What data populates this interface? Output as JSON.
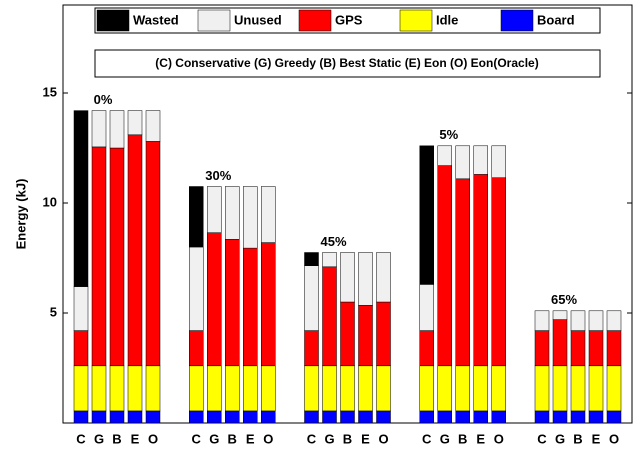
{
  "chart_data": {
    "type": "stacked-bar",
    "ylabel": "Energy (kJ)",
    "ylim": [
      0,
      19
    ],
    "yticks": [
      5,
      10,
      15
    ],
    "group_labels": [
      "0%",
      "30%",
      "45%",
      "5%",
      "65%"
    ],
    "categories": [
      "C",
      "G",
      "B",
      "E",
      "O",
      "C",
      "G",
      "B",
      "E",
      "O",
      "C",
      "G",
      "B",
      "E",
      "O",
      "C",
      "G",
      "B",
      "E",
      "O",
      "C",
      "G",
      "B",
      "E",
      "O"
    ],
    "annotation": "(C) Conservative (G) Greedy (B) Best Static (E) Eon (O) Eon(Oracle)",
    "series": [
      {
        "name": "Board",
        "color": "#0000ff",
        "values": [
          0.55,
          0.55,
          0.55,
          0.55,
          0.55,
          0.55,
          0.55,
          0.55,
          0.55,
          0.55,
          0.55,
          0.55,
          0.55,
          0.55,
          0.55,
          0.55,
          0.55,
          0.55,
          0.55,
          0.55,
          0.55,
          0.55,
          0.55,
          0.55,
          0.55
        ]
      },
      {
        "name": "Idle",
        "color": "#ffff00",
        "values": [
          2.05,
          2.05,
          2.05,
          2.05,
          2.05,
          2.05,
          2.05,
          2.05,
          2.05,
          2.05,
          2.05,
          2.05,
          2.05,
          2.05,
          2.05,
          2.05,
          2.05,
          2.05,
          2.05,
          2.05,
          2.05,
          2.05,
          2.05,
          2.05,
          2.05
        ]
      },
      {
        "name": "GPS",
        "color": "#ff0000",
        "values": [
          1.6,
          9.95,
          9.9,
          10.5,
          10.2,
          1.6,
          6.05,
          5.75,
          5.35,
          5.6,
          1.6,
          4.5,
          2.9,
          2.75,
          2.9,
          1.6,
          9.1,
          8.5,
          8.7,
          8.55,
          1.6,
          2.1,
          1.6,
          1.6,
          1.6
        ]
      },
      {
        "name": "Unused",
        "color": "#f0f0f0",
        "values": [
          2.0,
          1.65,
          1.7,
          1.1,
          1.4,
          3.8,
          2.1,
          2.4,
          2.8,
          2.55,
          2.95,
          0.65,
          2.25,
          2.4,
          2.25,
          2.1,
          0.9,
          1.5,
          1.3,
          1.45,
          0.9,
          0.4,
          0.9,
          0.9,
          0.9
        ]
      },
      {
        "name": "Wasted",
        "color": "#000000",
        "values": [
          8.0,
          0,
          0,
          0,
          0,
          2.75,
          0,
          0,
          0,
          0,
          0.6,
          0,
          0,
          0,
          0,
          6.3,
          0,
          0,
          0,
          0,
          0,
          0,
          0,
          0,
          0
        ]
      }
    ]
  }
}
